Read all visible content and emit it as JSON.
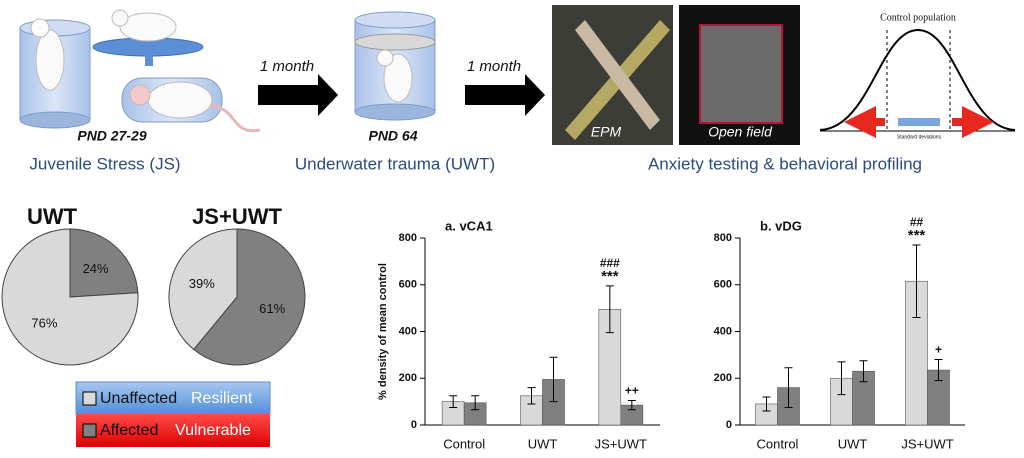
{
  "figure": {
    "arrows": [
      "1 month",
      "1 month"
    ],
    "stages": [
      {
        "age": "PND 27-29",
        "label": "Juvenile Stress (JS)"
      },
      {
        "age": "PND 64",
        "label": "Underwater trauma (UWT)"
      },
      {
        "label": "Anxiety testing & behavioral profiling"
      }
    ],
    "photos": [
      "EPM",
      "Open field"
    ],
    "curve": {
      "title": "Control population",
      "axis": "Standard deviations"
    },
    "legend": [
      [
        "Unaffected",
        "Resilient"
      ],
      [
        "Affected",
        "Vulnerable"
      ]
    ]
  },
  "chart_data": [
    {
      "type": "pie",
      "title": "UWT",
      "values": [
        24,
        76
      ],
      "value_labels": [
        "24%",
        "76%"
      ],
      "colors": [
        "#808080",
        "#d9d9d9"
      ]
    },
    {
      "type": "pie",
      "title": "JS+UWT",
      "values": [
        61,
        39
      ],
      "value_labels": [
        "61%",
        "39%"
      ],
      "colors": [
        "#808080",
        "#d9d9d9"
      ]
    },
    {
      "type": "bar",
      "title": "a. vCA1",
      "ylabel": "% density of mean control",
      "categories": [
        "Control",
        "UWT",
        "JS+UWT"
      ],
      "ylim": [
        0,
        800
      ],
      "yticks": [
        0,
        200,
        400,
        600,
        800
      ],
      "series": [
        {
          "color": "#d9d9d9",
          "values": [
            100,
            125,
            495
          ],
          "errors": [
            25,
            35,
            100
          ],
          "markers": [
            null,
            null,
            [
              "###",
              "***"
            ]
          ]
        },
        {
          "color": "#808080",
          "values": [
            95,
            195,
            85
          ],
          "errors": [
            30,
            95,
            20
          ],
          "markers": [
            null,
            null,
            [
              "++"
            ]
          ]
        }
      ]
    },
    {
      "type": "bar",
      "title": "b. vDG",
      "categories": [
        "Control",
        "UWT",
        "JS+UWT"
      ],
      "ylim": [
        0,
        800
      ],
      "yticks": [
        0,
        200,
        400,
        600,
        800
      ],
      "series": [
        {
          "color": "#d9d9d9",
          "values": [
            90,
            200,
            615
          ],
          "errors": [
            30,
            70,
            155
          ],
          "markers": [
            null,
            null,
            [
              "##",
              "***"
            ]
          ]
        },
        {
          "color": "#808080",
          "values": [
            160,
            230,
            235
          ],
          "errors": [
            85,
            45,
            45
          ],
          "markers": [
            null,
            null,
            [
              "+"
            ]
          ]
        }
      ]
    }
  ]
}
